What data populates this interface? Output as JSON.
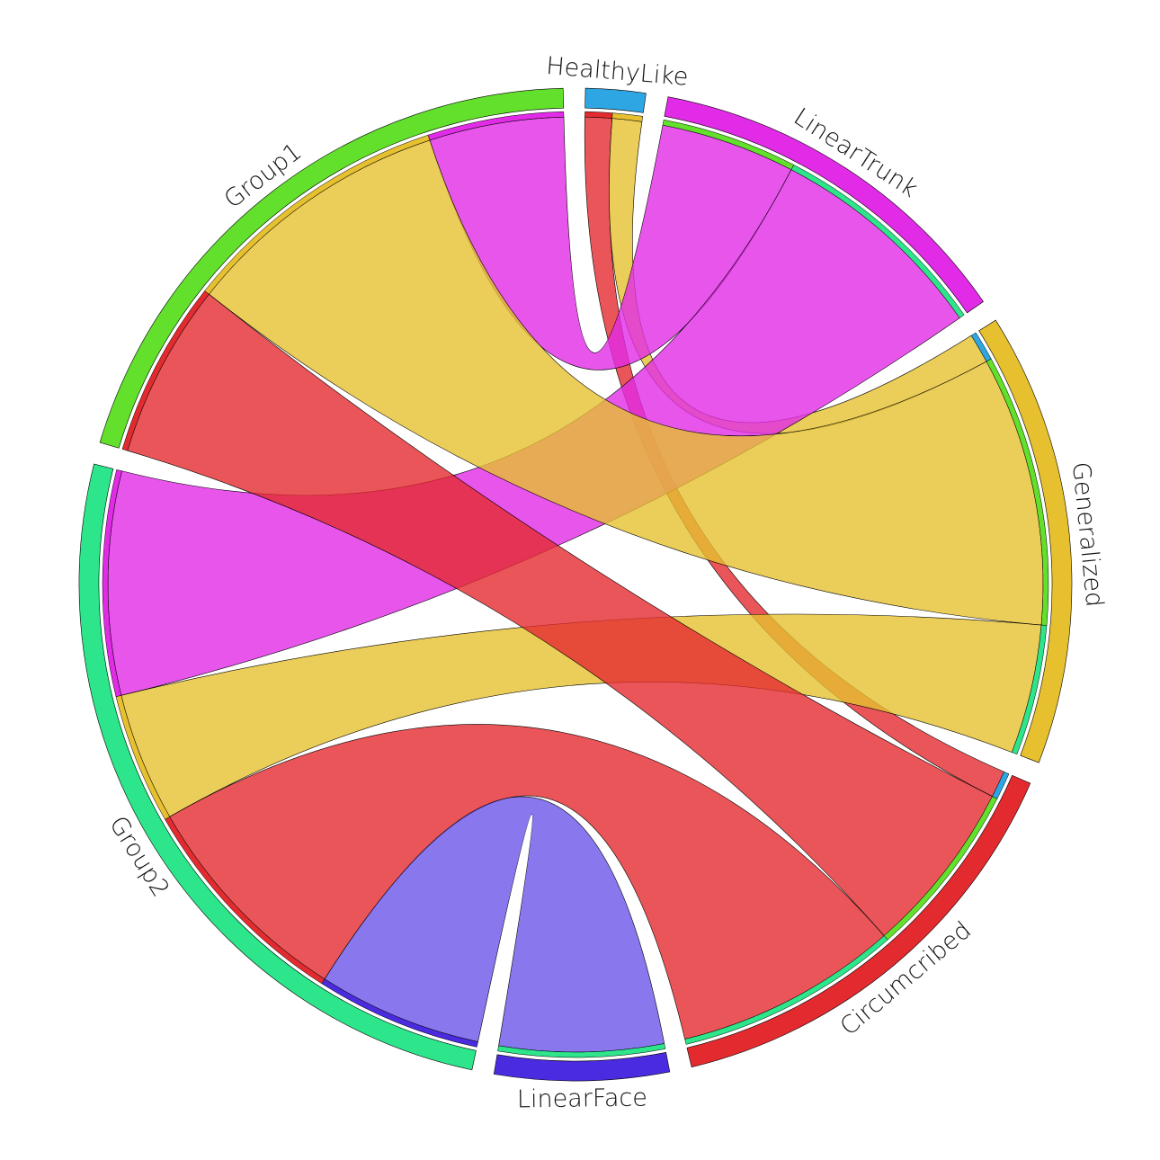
{
  "chart_data": {
    "type": "chord",
    "nodes": [
      {
        "id": "HealthyLike",
        "label": "HealthyLike",
        "color": "#2ea6e3"
      },
      {
        "id": "LinearTrunk",
        "label": "LinearTrunk",
        "color": "#e22be6"
      },
      {
        "id": "Generalized",
        "label": "Generalized",
        "color": "#e6c02f"
      },
      {
        "id": "Circumcribed",
        "label": "Circumcribed",
        "color": "#e32b2f"
      },
      {
        "id": "LinearFace",
        "label": "LinearFace",
        "color": "#4b2be0"
      },
      {
        "id": "Group2",
        "label": "Group2",
        "color": "#2de58a"
      },
      {
        "id": "Group1",
        "label": "Group1",
        "color": "#62e02b"
      }
    ],
    "links": [
      {
        "source": "HealthyLike",
        "target": "Circumcribed",
        "value": 1,
        "color": "#e32b2f"
      },
      {
        "source": "HealthyLike",
        "target": "Generalized",
        "value": 1.1,
        "color": "#e6c02f"
      },
      {
        "source": "LinearTrunk",
        "target": "Group1",
        "value": 5,
        "color": "#e22be6"
      },
      {
        "source": "LinearTrunk",
        "target": "Group2",
        "value": 8.3,
        "color": "#e22be6"
      },
      {
        "source": "Generalized",
        "target": "Group1",
        "value": 10,
        "color": "#e6c02f"
      },
      {
        "source": "Generalized",
        "target": "Group2",
        "value": 4.8,
        "color": "#e6c02f"
      },
      {
        "source": "Circumcribed",
        "target": "Group1",
        "value": 6.5,
        "color": "#e32b2f"
      },
      {
        "source": "Circumcribed",
        "target": "Group2",
        "value": 8.3,
        "color": "#e32b2f"
      },
      {
        "source": "LinearFace",
        "target": "Group2",
        "value": 6.1,
        "color": "#6a55e8"
      }
    ]
  }
}
